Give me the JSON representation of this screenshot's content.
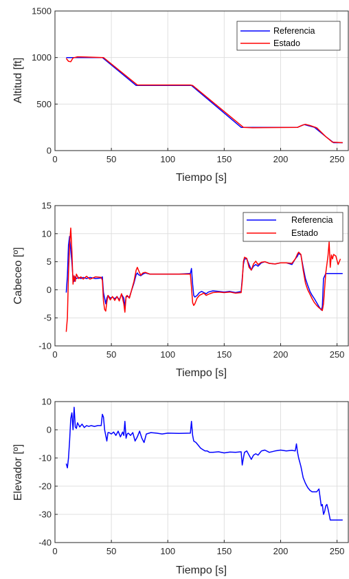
{
  "chart_data": [
    {
      "type": "line",
      "xlabel": "Tiempo [s]",
      "ylabel": "Altitud [ft]",
      "xlim": [
        0,
        260
      ],
      "ylim": [
        0,
        1500
      ],
      "xticks": [
        0,
        50,
        100,
        150,
        200,
        250
      ],
      "yticks": [
        0,
        500,
        1000,
        1500
      ],
      "grid": true,
      "legend_position": "top-right",
      "series": [
        {
          "name": "Referencia",
          "color": "#0000ff",
          "x": [
            10,
            42,
            72,
            121,
            165,
            215,
            221,
            230,
            240,
            247,
            255
          ],
          "y": [
            1000,
            1000,
            700,
            700,
            250,
            250,
            280,
            250,
            150,
            85,
            85
          ]
        },
        {
          "name": "Estado",
          "color": "#ff0000",
          "x": [
            10,
            12,
            14,
            16,
            20,
            43,
            73,
            120,
            122,
            167,
            175,
            215,
            219,
            222,
            226,
            232,
            240,
            246,
            255
          ],
          "y": [
            990,
            960,
            955,
            995,
            1008,
            1000,
            705,
            705,
            700,
            250,
            245,
            250,
            272,
            282,
            270,
            245,
            150,
            90,
            85
          ]
        }
      ]
    },
    {
      "type": "line",
      "xlabel": "Tiempo [s]",
      "ylabel": "Cabeceo [º]",
      "xlim": [
        0,
        260
      ],
      "ylim": [
        -10,
        15
      ],
      "xticks": [
        0,
        50,
        100,
        150,
        200,
        250
      ],
      "yticks": [
        -10,
        -5,
        0,
        5,
        10,
        15
      ],
      "grid": true,
      "legend_position": "top-right",
      "series": [
        {
          "name": "Referencia",
          "color": "#0000ff",
          "x": [
            10,
            11,
            12,
            13,
            14,
            15,
            16,
            17,
            18,
            19,
            21,
            23,
            25,
            28,
            31,
            36,
            41,
            42,
            43,
            44,
            45,
            46,
            47,
            49,
            51,
            53,
            55,
            57,
            59,
            61,
            62,
            63,
            64,
            66,
            70,
            72,
            73,
            74,
            76,
            78,
            80,
            84,
            90,
            100,
            110,
            120,
            121,
            122,
            123,
            124,
            126,
            128,
            130,
            132,
            134,
            136,
            140,
            145,
            150,
            155,
            160,
            165,
            166,
            167,
            168,
            170,
            172,
            174,
            176,
            178,
            180,
            183,
            186,
            190,
            195,
            200,
            205,
            210,
            213,
            215,
            216,
            218,
            220,
            222,
            224,
            226,
            228,
            230,
            232,
            234,
            236,
            237,
            238,
            240,
            242,
            245,
            255
          ],
          "y": [
            -0.5,
            2.5,
            8,
            9.5,
            7,
            5,
            2,
            1.5,
            2.3,
            2,
            2.2,
            2,
            2.2,
            2,
            2.2,
            2,
            2.1,
            2.3,
            -0.5,
            -1.5,
            -2.5,
            -1.5,
            -1,
            -1.5,
            -1.3,
            -1.6,
            -1.2,
            -1.8,
            -0.8,
            -1.5,
            -3,
            -1.3,
            -1.2,
            -1.3,
            1.2,
            2.7,
            3,
            2.7,
            2.5,
            2.8,
            3,
            2.8,
            2.8,
            2.8,
            2.8,
            2.9,
            3.8,
            1,
            -1,
            -1.3,
            -1,
            -0.5,
            -0.3,
            -0.5,
            -0.7,
            -0.4,
            -0.2,
            -0.3,
            -0.4,
            -0.3,
            -0.5,
            -0.3,
            2,
            4.5,
            5.5,
            5.5,
            4.5,
            3.5,
            4.2,
            4.5,
            4.2,
            4.8,
            5,
            4.7,
            4.6,
            4.8,
            4.8,
            4.5,
            5.5,
            6,
            6.5,
            6.2,
            4,
            2,
            0.8,
            -0.3,
            -1,
            -1.6,
            -2.3,
            -3,
            -3.6,
            -3,
            2,
            2.9,
            2.9,
            2.9,
            2.9
          ]
        },
        {
          "name": "Estado",
          "color": "#ff0000",
          "x": [
            10,
            11,
            12,
            13,
            14,
            15,
            16,
            17,
            18,
            19,
            21,
            23,
            25,
            28,
            31,
            36,
            41,
            42,
            43,
            44,
            45,
            46,
            47,
            49,
            51,
            53,
            55,
            57,
            59,
            61,
            62,
            63,
            64,
            66,
            70,
            72,
            73,
            74,
            76,
            78,
            80,
            84,
            90,
            100,
            110,
            120,
            121,
            122,
            123,
            124,
            126,
            128,
            130,
            132,
            134,
            136,
            140,
            145,
            150,
            155,
            160,
            165,
            166,
            167,
            168,
            170,
            172,
            174,
            176,
            178,
            180,
            183,
            186,
            190,
            195,
            200,
            205,
            210,
            213,
            215,
            216,
            218,
            220,
            222,
            224,
            226,
            228,
            230,
            232,
            234,
            236,
            237,
            238,
            240,
            242,
            243,
            244,
            245,
            246,
            247,
            249,
            251,
            253
          ],
          "y": [
            -7.5,
            -5,
            3,
            8,
            11,
            7,
            1,
            2.5,
            1.5,
            2.8,
            2,
            2.3,
            1.9,
            2.4,
            1.9,
            2.3,
            2.2,
            1.7,
            -2,
            -3.5,
            -3.8,
            -2.2,
            -1,
            -1.8,
            -1.2,
            -1.9,
            -1.2,
            -2,
            -0.7,
            -2.5,
            -4,
            -1.2,
            -1,
            -1.5,
            1.5,
            3.5,
            4,
            3.5,
            2.6,
            3,
            3.1,
            2.8,
            2.8,
            2.8,
            2.8,
            2.8,
            0.5,
            -2.3,
            -2.8,
            -2.5,
            -1.5,
            -1,
            -0.8,
            -0.6,
            -1,
            -0.8,
            -0.5,
            -0.4,
            -0.5,
            -0.4,
            -0.6,
            -0.5,
            1.5,
            5,
            5.8,
            5.6,
            4,
            3.5,
            4.6,
            5.1,
            4.5,
            4.9,
            5,
            4.7,
            4.6,
            4.8,
            4.8,
            4.7,
            5.5,
            6.4,
            6.7,
            6.3,
            3.5,
            1.2,
            0,
            -0.8,
            -1.6,
            -2.3,
            -2.8,
            -3.2,
            -3.5,
            -3.7,
            -2.5,
            3,
            6,
            8.5,
            4,
            6.2,
            5.5,
            6.3,
            6,
            4.5,
            5.5
          ]
        }
      ]
    },
    {
      "type": "line",
      "xlabel": "Tiempo [s]",
      "ylabel": "Elevador [º]",
      "xlim": [
        0,
        260
      ],
      "ylim": [
        -40,
        10
      ],
      "xticks": [
        0,
        50,
        100,
        150,
        200,
        250
      ],
      "yticks": [
        -40,
        -30,
        -20,
        -10,
        0,
        10
      ],
      "grid": true,
      "series": [
        {
          "color": "#0000ff",
          "x": [
            10,
            11,
            12,
            13,
            14,
            15,
            16,
            17,
            18,
            19,
            20,
            22,
            24,
            26,
            28,
            30,
            32,
            35,
            38,
            41,
            42,
            43,
            44,
            45,
            46,
            47,
            48,
            50,
            52,
            54,
            56,
            58,
            60,
            61,
            62,
            63,
            64,
            65,
            67,
            69,
            71,
            73,
            75,
            77,
            79,
            81,
            85,
            90,
            95,
            100,
            110,
            120,
            121,
            122,
            123,
            125,
            127,
            129,
            131,
            133,
            135,
            137,
            140,
            145,
            150,
            155,
            160,
            165,
            166,
            167,
            168,
            170,
            172,
            174,
            176,
            178,
            180,
            183,
            186,
            190,
            195,
            200,
            205,
            210,
            213,
            214,
            215,
            216,
            218,
            220,
            222,
            224,
            226,
            228,
            230,
            232,
            234,
            236,
            237,
            238,
            239,
            240,
            241,
            242,
            243,
            244,
            246,
            248,
            255
          ],
          "y": [
            -12,
            -13.5,
            -10,
            -4,
            4,
            6,
            0,
            8,
            1,
            0.5,
            2.5,
            1,
            2,
            0.8,
            1.5,
            1.2,
            1.5,
            1.2,
            1.5,
            1.5,
            5.5,
            4.5,
            0,
            -2,
            -4,
            -1,
            -1,
            -1.5,
            -0.8,
            -2,
            -0.5,
            -2.5,
            -0.8,
            -2,
            3,
            -3,
            -1.5,
            -1.2,
            -2,
            -1,
            -4,
            -2.5,
            -0.5,
            -3,
            -4.5,
            -1.5,
            -1,
            -1.2,
            -1.5,
            -1.2,
            -1.3,
            -1.2,
            3,
            -2,
            -4,
            -4.5,
            -5.5,
            -6.5,
            -7,
            -7.5,
            -7.5,
            -8,
            -8,
            -7.8,
            -8.2,
            -7.9,
            -8,
            -7.8,
            -12.5,
            -10,
            -8,
            -7.5,
            -9,
            -10.5,
            -9,
            -8.5,
            -9,
            -7.5,
            -7.2,
            -8,
            -7.5,
            -7.2,
            -7.5,
            -7.3,
            -7.5,
            -5,
            -8,
            -10,
            -13,
            -17,
            -19,
            -20.5,
            -21.5,
            -22,
            -22,
            -22,
            -21,
            -27,
            -26.5,
            -30,
            -29,
            -27,
            -26.5,
            -28,
            -30,
            -32,
            -32,
            -32,
            -32
          ]
        }
      ]
    }
  ]
}
